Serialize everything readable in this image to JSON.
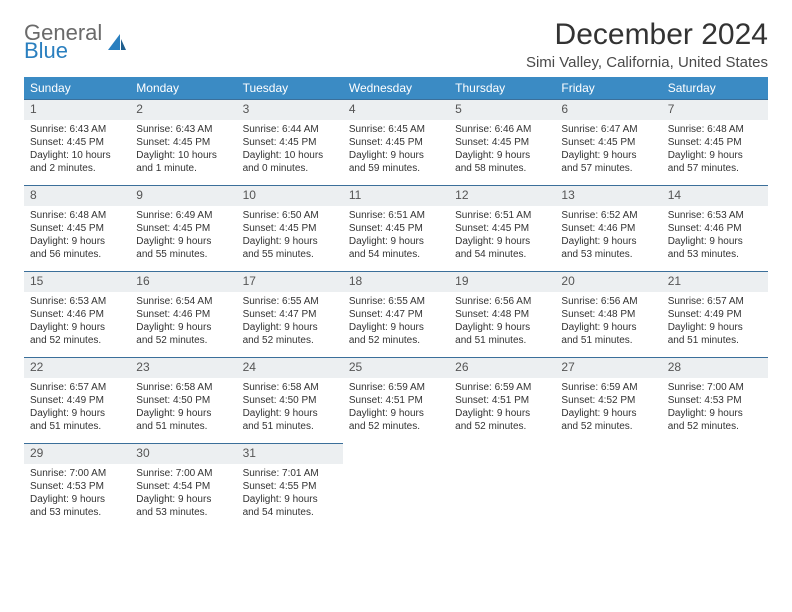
{
  "brand": {
    "line1": "General",
    "line2": "Blue"
  },
  "title": "December 2024",
  "location": "Simi Valley, California, United States",
  "colors": {
    "header_bg": "#3b8bc4",
    "header_text": "#ffffff",
    "cell_border": "#3b6f9a",
    "daynum_bg": "#eceff1",
    "text": "#333333",
    "logo_gray": "#6a6a6a",
    "logo_blue": "#2a7fbf"
  },
  "dow": [
    "Sunday",
    "Monday",
    "Tuesday",
    "Wednesday",
    "Thursday",
    "Friday",
    "Saturday"
  ],
  "days": [
    {
      "n": 1,
      "sr": "6:43 AM",
      "ss": "4:45 PM",
      "dl": "10 hours and 2 minutes."
    },
    {
      "n": 2,
      "sr": "6:43 AM",
      "ss": "4:45 PM",
      "dl": "10 hours and 1 minute."
    },
    {
      "n": 3,
      "sr": "6:44 AM",
      "ss": "4:45 PM",
      "dl": "10 hours and 0 minutes."
    },
    {
      "n": 4,
      "sr": "6:45 AM",
      "ss": "4:45 PM",
      "dl": "9 hours and 59 minutes."
    },
    {
      "n": 5,
      "sr": "6:46 AM",
      "ss": "4:45 PM",
      "dl": "9 hours and 58 minutes."
    },
    {
      "n": 6,
      "sr": "6:47 AM",
      "ss": "4:45 PM",
      "dl": "9 hours and 57 minutes."
    },
    {
      "n": 7,
      "sr": "6:48 AM",
      "ss": "4:45 PM",
      "dl": "9 hours and 57 minutes."
    },
    {
      "n": 8,
      "sr": "6:48 AM",
      "ss": "4:45 PM",
      "dl": "9 hours and 56 minutes."
    },
    {
      "n": 9,
      "sr": "6:49 AM",
      "ss": "4:45 PM",
      "dl": "9 hours and 55 minutes."
    },
    {
      "n": 10,
      "sr": "6:50 AM",
      "ss": "4:45 PM",
      "dl": "9 hours and 55 minutes."
    },
    {
      "n": 11,
      "sr": "6:51 AM",
      "ss": "4:45 PM",
      "dl": "9 hours and 54 minutes."
    },
    {
      "n": 12,
      "sr": "6:51 AM",
      "ss": "4:45 PM",
      "dl": "9 hours and 54 minutes."
    },
    {
      "n": 13,
      "sr": "6:52 AM",
      "ss": "4:46 PM",
      "dl": "9 hours and 53 minutes."
    },
    {
      "n": 14,
      "sr": "6:53 AM",
      "ss": "4:46 PM",
      "dl": "9 hours and 53 minutes."
    },
    {
      "n": 15,
      "sr": "6:53 AM",
      "ss": "4:46 PM",
      "dl": "9 hours and 52 minutes."
    },
    {
      "n": 16,
      "sr": "6:54 AM",
      "ss": "4:46 PM",
      "dl": "9 hours and 52 minutes."
    },
    {
      "n": 17,
      "sr": "6:55 AM",
      "ss": "4:47 PM",
      "dl": "9 hours and 52 minutes."
    },
    {
      "n": 18,
      "sr": "6:55 AM",
      "ss": "4:47 PM",
      "dl": "9 hours and 52 minutes."
    },
    {
      "n": 19,
      "sr": "6:56 AM",
      "ss": "4:48 PM",
      "dl": "9 hours and 51 minutes."
    },
    {
      "n": 20,
      "sr": "6:56 AM",
      "ss": "4:48 PM",
      "dl": "9 hours and 51 minutes."
    },
    {
      "n": 21,
      "sr": "6:57 AM",
      "ss": "4:49 PM",
      "dl": "9 hours and 51 minutes."
    },
    {
      "n": 22,
      "sr": "6:57 AM",
      "ss": "4:49 PM",
      "dl": "9 hours and 51 minutes."
    },
    {
      "n": 23,
      "sr": "6:58 AM",
      "ss": "4:50 PM",
      "dl": "9 hours and 51 minutes."
    },
    {
      "n": 24,
      "sr": "6:58 AM",
      "ss": "4:50 PM",
      "dl": "9 hours and 51 minutes."
    },
    {
      "n": 25,
      "sr": "6:59 AM",
      "ss": "4:51 PM",
      "dl": "9 hours and 52 minutes."
    },
    {
      "n": 26,
      "sr": "6:59 AM",
      "ss": "4:51 PM",
      "dl": "9 hours and 52 minutes."
    },
    {
      "n": 27,
      "sr": "6:59 AM",
      "ss": "4:52 PM",
      "dl": "9 hours and 52 minutes."
    },
    {
      "n": 28,
      "sr": "7:00 AM",
      "ss": "4:53 PM",
      "dl": "9 hours and 52 minutes."
    },
    {
      "n": 29,
      "sr": "7:00 AM",
      "ss": "4:53 PM",
      "dl": "9 hours and 53 minutes."
    },
    {
      "n": 30,
      "sr": "7:00 AM",
      "ss": "4:54 PM",
      "dl": "9 hours and 53 minutes."
    },
    {
      "n": 31,
      "sr": "7:01 AM",
      "ss": "4:55 PM",
      "dl": "9 hours and 54 minutes."
    }
  ],
  "labels": {
    "sunrise": "Sunrise: ",
    "sunset": "Sunset: ",
    "daylight": "Daylight: "
  }
}
